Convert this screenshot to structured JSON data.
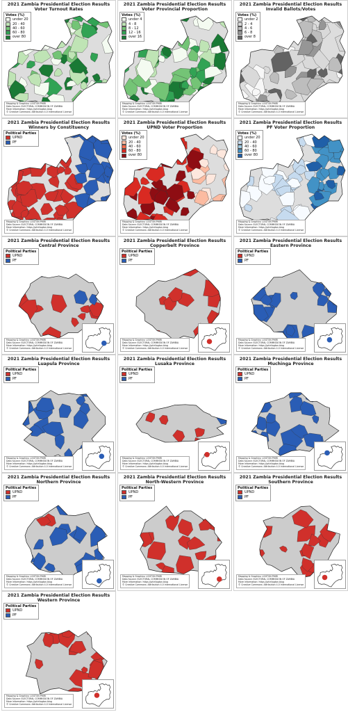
{
  "main_title": "2021 Zambia Presidential Election Results",
  "credits": [
    "Mapping & Graphics: LOGTON PHIRI",
    "Data Source: ELECTORAL COMMISSION OF ZAMBIA",
    "More Information: https://phirilogton.blog",
    "© Creative Commons: Attribution 4.0 International License"
  ],
  "colors": {
    "upnd": "#d0302b",
    "pf": "#2a5db5",
    "green_ramp": [
      "#f4fbf1",
      "#bfe4b5",
      "#74c476",
      "#31a354",
      "#1a7a35"
    ],
    "red_ramp": [
      "#fde7dd",
      "#fcbba1",
      "#fb6a4a",
      "#d92a22",
      "#8e0d13"
    ],
    "blue_ramp": [
      "#f7fbff",
      "#c6dbef",
      "#9ecae1",
      "#4292c6",
      "#1f5fa8"
    ],
    "grey_ramp": [
      "#f7f7f7",
      "#d9d9d9",
      "#bdbdbd",
      "#969696",
      "#636363"
    ]
  },
  "legends": {
    "turnout": {
      "title": "Votes (%)",
      "items": [
        "under 20",
        "20 - 40",
        "40 - 60",
        "60 - 80",
        "over 80"
      ]
    },
    "provincial": {
      "title": "Votes (%)",
      "items": [
        "under 4",
        "4 - 8",
        "8 - 12",
        "12 - 16",
        "over 16"
      ]
    },
    "invalid": {
      "title": "Votes (%)",
      "items": [
        "under 2",
        "2 - 4",
        "4 - 6",
        "6 - 8",
        "over 8"
      ]
    },
    "upnd_prop": {
      "title": "Votes (%)",
      "items": [
        "under 20",
        "20 - 40",
        "40 - 60",
        "60 - 80",
        "over 80"
      ]
    },
    "pf_prop": {
      "title": "Votes (%)",
      "items": [
        "under 20",
        "20 - 40",
        "40 - 60",
        "60 - 80",
        "over 80"
      ]
    },
    "parties": {
      "title": "Political Parties",
      "items": [
        "UPND",
        "PF"
      ]
    }
  },
  "panels": [
    {
      "id": "turnout",
      "subtitle": "Voter Turnout Rates",
      "legend": "turnout",
      "ramp": "green_ramp"
    },
    {
      "id": "provincial",
      "subtitle": "Voter Provincial Proportion",
      "legend": "provincial",
      "ramp": "green_ramp"
    },
    {
      "id": "invalid",
      "subtitle": "Invalid Ballots/Votes",
      "legend": "invalid",
      "ramp": "grey_ramp"
    },
    {
      "id": "winners",
      "subtitle": "Winners by Constituency",
      "legend": "parties"
    },
    {
      "id": "upnd",
      "subtitle": "UPND Voter Proportion",
      "legend": "upnd_prop",
      "ramp": "red_ramp"
    },
    {
      "id": "pfprop",
      "subtitle": "PF Voter Proportion",
      "legend": "pf_prop",
      "ramp": "blue_ramp"
    },
    {
      "id": "central",
      "subtitle": "Central Province",
      "legend": "parties"
    },
    {
      "id": "copperbelt",
      "subtitle": "Copperbelt Province",
      "legend": "parties"
    },
    {
      "id": "eastern",
      "subtitle": "Eastern Province",
      "legend": "parties"
    },
    {
      "id": "luapula",
      "subtitle": "Luapula Province",
      "legend": "parties"
    },
    {
      "id": "lusaka",
      "subtitle": "Lusaka Province",
      "legend": "parties"
    },
    {
      "id": "muchinga",
      "subtitle": "Muchinga Province",
      "legend": "parties"
    },
    {
      "id": "northern",
      "subtitle": "Northern Province",
      "legend": "parties"
    },
    {
      "id": "northwestern",
      "subtitle": "North-Western Province",
      "legend": "parties"
    },
    {
      "id": "southern",
      "subtitle": "Southern Province",
      "legend": "parties"
    },
    {
      "id": "western",
      "subtitle": "Western Province",
      "legend": "parties"
    }
  ]
}
